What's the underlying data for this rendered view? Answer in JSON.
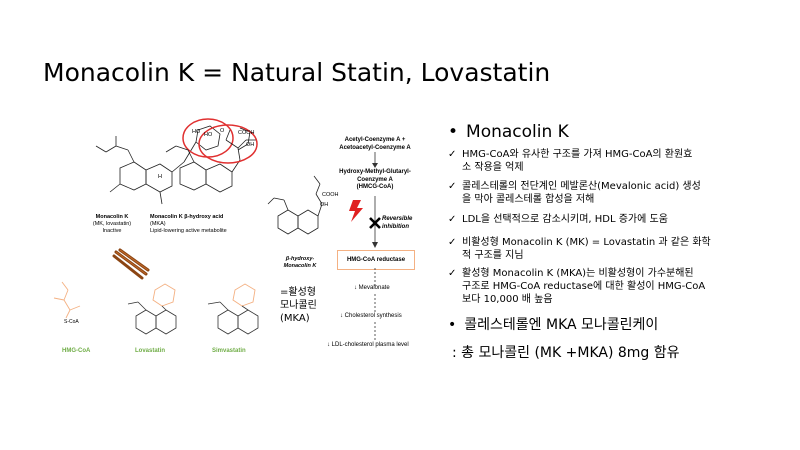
{
  "slide": {
    "title": "Monacolin K = Natural Statin, Lovastatin"
  },
  "figures": {
    "mk": {
      "name": "Monacolin K",
      "sub1": "(MK, lovastatin)",
      "sub2": "Inactive"
    },
    "mka": {
      "name": "Monacolin K β-hydroxy acid",
      "sub1": "(MKA)",
      "sub2": "Lipid-lowering active metabolite"
    },
    "bottom": {
      "hmgcoa": "HMG-CoA",
      "lovastatin": "Lovastatin",
      "simvastatin": "Simvastatin",
      "scoa": "S-CoA"
    },
    "beta": {
      "label": "β-hydroxy-\nMonacolin K",
      "cooh": "COOH",
      "oh": "OH"
    },
    "atoms": {
      "ho": "HO",
      "o": "O",
      "h": "H",
      "cooh": "COOH",
      "oh": "OH"
    }
  },
  "pathway": {
    "step1": "Acetyl-Coenzyme A +\nAcetoacetyl-Coenzyme A",
    "step2": "Hydroxy-Methyl-Glutaryl-\nCoenzyme A\n(HMCG-CoA)",
    "inhibition": "Reversible\ninhibition",
    "enzyme": "HMG-CoA reductase",
    "step3": "↓ Mevalonate",
    "step4": "↓ Cholesterol synthesis",
    "step5": "↓ LDL-cholesterol plasma level"
  },
  "side_note": "=활성형\n모나콜린\n(MKA)",
  "bullets": {
    "heading": "Monacolin K",
    "checks": [
      "HMG-CoA와 유사한 구조를 가져 HMG-CoA의 환원효\n소 작용을 억제",
      "콜레스테롤의 전단계인 메발론산(Mevalonic acid) 생성\n을 막아 콜레스테롤 합성을 저해",
      "LDL을 선택적으로 감소시키며, HDL 증가에 도움",
      "비활성형 Monacolin K (MK) = Lovastatin 과 같은 화학\n적 구조를 지님",
      "활성형 Monacolin K (MKA)는 비활성형이 가수분해된\n구조로 HMG-CoA reductase에 대한 활성이 HMG-CoA\n보다 10,000 배 높음"
    ],
    "check_mark": "✓",
    "bullet2": "콜레스테롤엔 MKA 모나콜린케이",
    "bullet2_sub": ": 총 모나콜린 (MK +MKA) 8mg 함유"
  },
  "colors": {
    "circle": "#e03030",
    "orange": "#f4b183",
    "green": "#70ad47",
    "bolt": "#e02020"
  }
}
